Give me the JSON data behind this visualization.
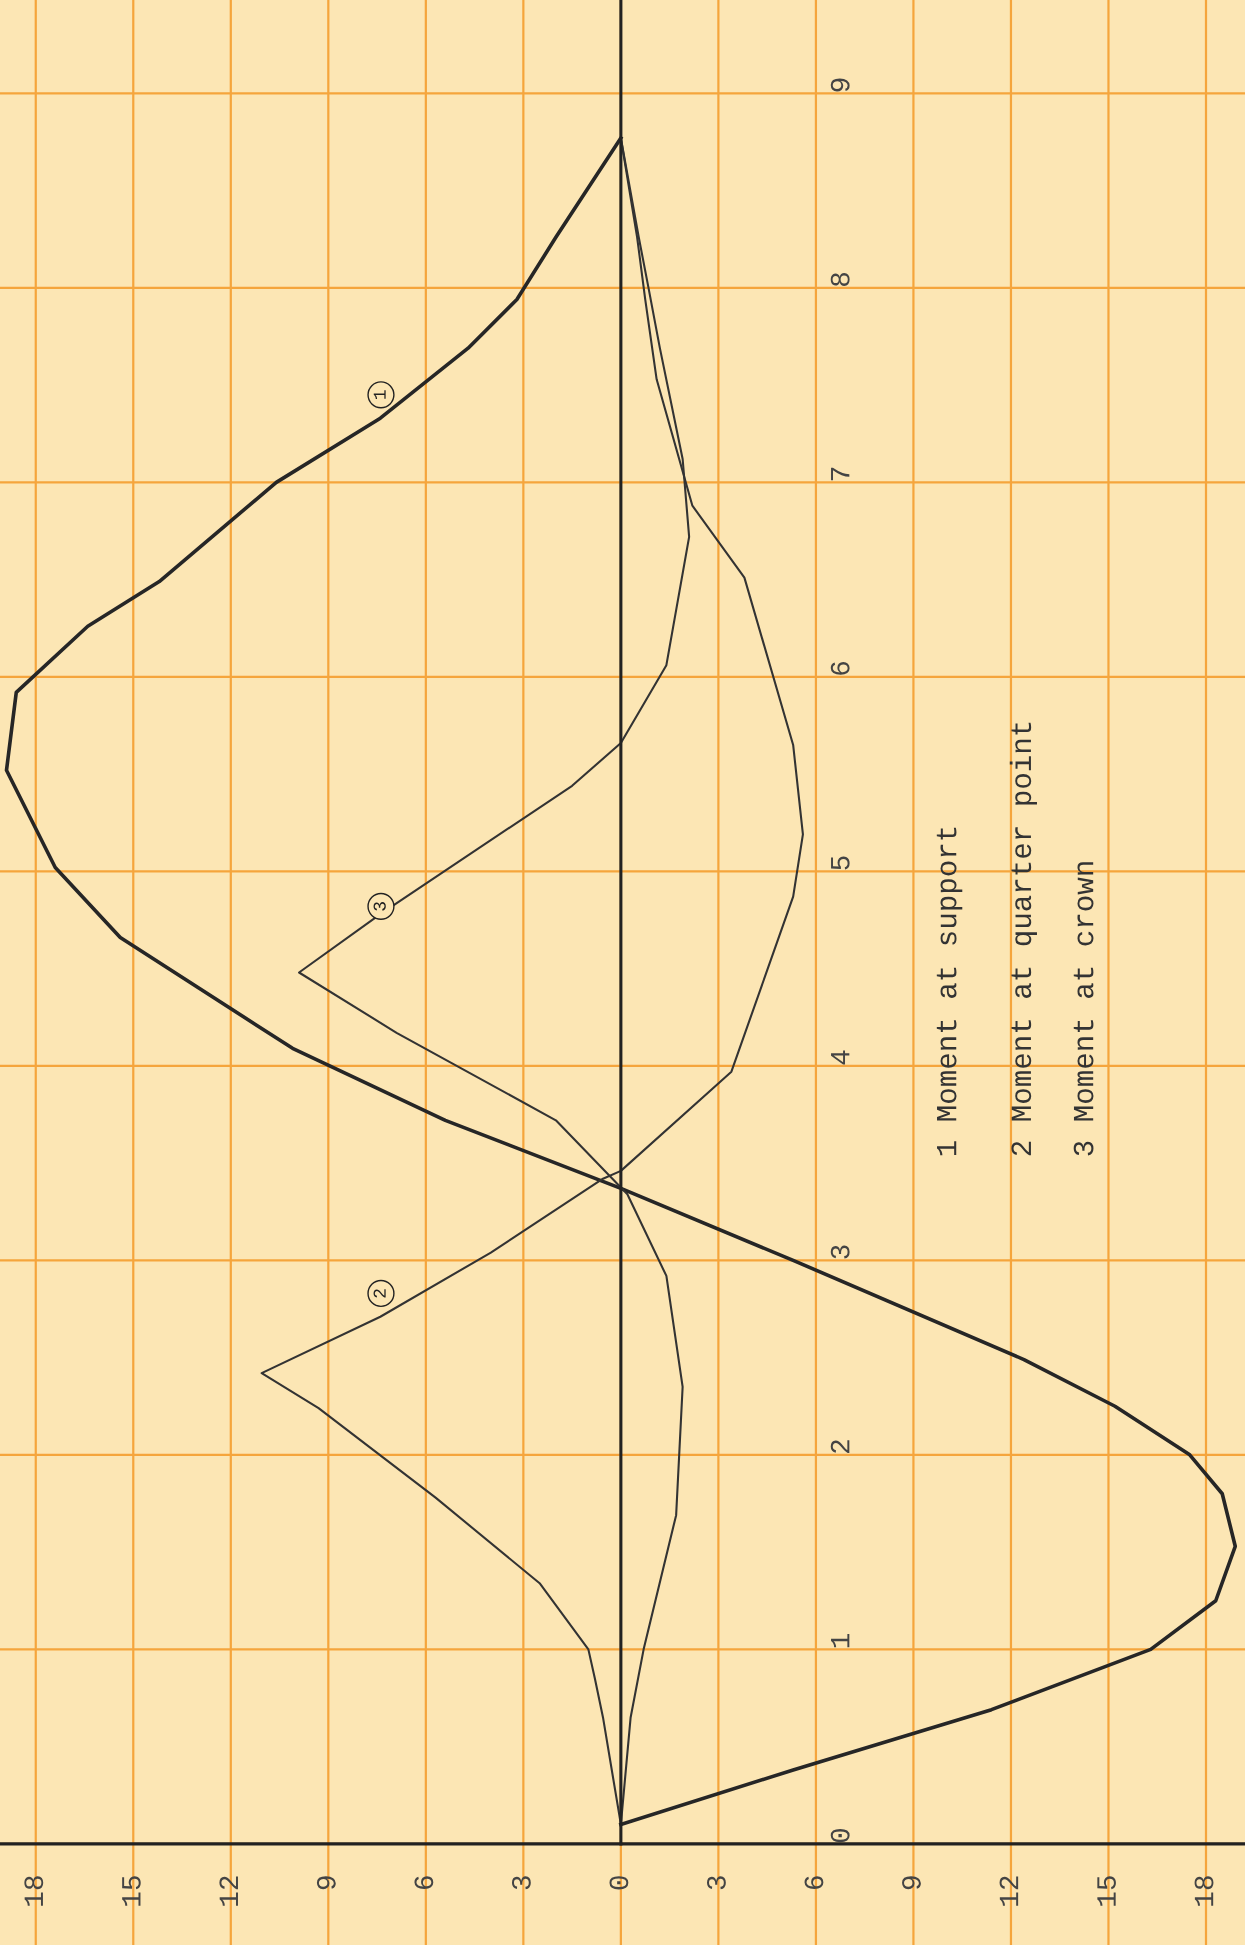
{
  "chart_data": {
    "type": "line",
    "orientation": "horizontal",
    "series": [
      {
        "color": "#262626",
        "x": [
          0.1,
          0.38,
          0.69,
          1.0,
          1.25,
          1.53,
          1.8,
          2.0,
          2.25,
          2.49,
          3.0,
          3.37,
          3.72,
          4.09,
          4.66,
          5.02,
          5.52,
          5.92,
          6.26,
          6.49,
          7.0,
          7.33,
          7.69,
          7.94,
          8.26,
          8.77
        ],
        "values": [
          0,
          -5.3,
          -11.4,
          -16.3,
          -18.3,
          -18.9,
          -18.5,
          -17.5,
          -15.2,
          -12.4,
          -5.3,
          0,
          5.4,
          10.1,
          15.4,
          17.4,
          18.9,
          18.6,
          16.4,
          14.2,
          10.6,
          7.4,
          4.7,
          3.2,
          2.0,
          0
        ]
      },
      {
        "color": "#333333",
        "x": [
          0.1,
          0.65,
          0.85,
          1.0,
          1.34,
          1.78,
          2.24,
          2.42,
          2.71,
          3.04,
          3.42,
          3.46,
          3.97,
          4.87,
          5.19,
          5.65,
          6.51,
          6.88,
          7.53,
          7.94,
          8.26,
          8.77
        ],
        "values": [
          0,
          0.55,
          0.8,
          1.0,
          2.5,
          5.7,
          9.3,
          11.05,
          7.4,
          4.0,
          0.55,
          0,
          -3.4,
          -5.3,
          -5.6,
          -5.3,
          -3.8,
          -2.2,
          -1.1,
          -0.75,
          -0.5,
          0
        ]
      },
      {
        "color": "#333333",
        "x": [
          0.1,
          0.65,
          1.0,
          1.69,
          2.35,
          2.92,
          3.34,
          3.72,
          4.17,
          4.48,
          4.78,
          5.44,
          5.66,
          6.06,
          6.72,
          7.12,
          7.69,
          8.0,
          8.26,
          8.77
        ],
        "values": [
          0,
          -0.3,
          -0.7,
          -1.7,
          -1.9,
          -1.4,
          -0.2,
          2.0,
          6.9,
          9.9,
          7.4,
          1.5,
          0,
          -1.4,
          -2.1,
          -1.9,
          -1.2,
          -0.85,
          -0.55,
          0
        ]
      }
    ],
    "xlim": [
      19.1,
      -19.2
    ],
    "xticks": [
      18,
      15,
      12,
      9,
      6,
      3,
      0,
      {
        "value": -3,
        "label": "3"
      },
      {
        "value": -6,
        "label": "6"
      },
      {
        "value": -9,
        "label": "9"
      },
      {
        "value": -12,
        "label": "12"
      },
      {
        "value": -15,
        "label": "15"
      },
      {
        "value": -18,
        "label": "18"
      }
    ],
    "ylim": [
      -0.52,
      9.48
    ],
    "yticks": [
      0,
      1,
      2,
      3,
      4,
      5,
      6,
      7,
      8,
      9
    ],
    "grid": true,
    "annotations": [
      "1",
      "2",
      "3",
      "1 Moment at support",
      "2 Moment at quarter point",
      "3 Moment at crown"
    ]
  }
}
